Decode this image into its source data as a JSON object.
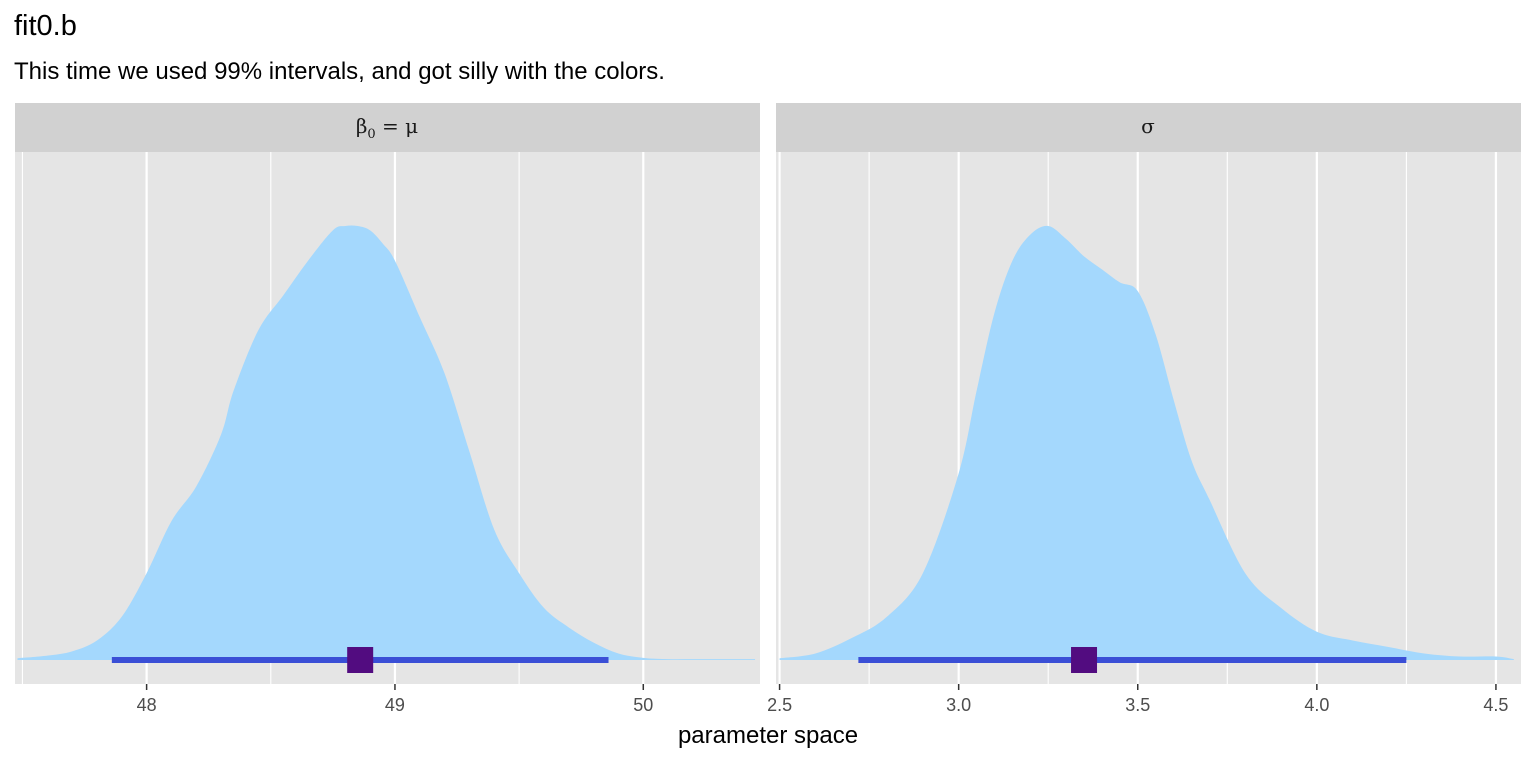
{
  "title": "fit0.b",
  "subtitle": "This time we used 99% intervals, and got silly with the colors.",
  "xlabel": "parameter space",
  "colors": {
    "panel_bg": "#e5e5e5",
    "strip_bg": "#d1d1d1",
    "grid": "#ffffff",
    "density_fill": "#a4d8fd",
    "interval": "#3a4fd6",
    "point": "#520c80"
  },
  "chart_data": [
    {
      "type": "area",
      "facet_label": "β0 = μ",
      "xlim": [
        47.47,
        50.47
      ],
      "ticks": [
        48,
        49,
        50
      ],
      "tick_labels": [
        "48",
        "49",
        "50"
      ],
      "density": {
        "x": [
          47.48,
          47.6,
          47.7,
          47.8,
          47.9,
          48.0,
          48.1,
          48.2,
          48.3,
          48.35,
          48.45,
          48.55,
          48.65,
          48.75,
          48.8,
          48.85,
          48.9,
          48.95,
          49.0,
          49.1,
          49.2,
          49.3,
          49.4,
          49.5,
          49.6,
          49.7,
          49.8,
          49.9,
          50.0,
          50.1,
          50.2,
          50.3,
          50.45
        ],
        "y": [
          0.004,
          0.01,
          0.02,
          0.045,
          0.1,
          0.2,
          0.32,
          0.4,
          0.52,
          0.62,
          0.76,
          0.84,
          0.92,
          0.99,
          1.0,
          1.0,
          0.99,
          0.96,
          0.92,
          0.79,
          0.66,
          0.48,
          0.3,
          0.2,
          0.12,
          0.075,
          0.04,
          0.015,
          0.005,
          0.002,
          0.002,
          0.002,
          0.002
        ]
      },
      "interval": [
        47.86,
        49.86
      ],
      "point": 48.86
    },
    {
      "type": "area",
      "facet_label": "σ",
      "xlim": [
        2.49,
        4.57
      ],
      "ticks": [
        2.5,
        3.0,
        3.5,
        4.0,
        4.5
      ],
      "tick_labels": [
        "2.5",
        "3.0",
        "3.5",
        "4.0",
        "4.5"
      ],
      "density": {
        "x": [
          2.5,
          2.6,
          2.7,
          2.8,
          2.9,
          3.0,
          3.05,
          3.1,
          3.15,
          3.2,
          3.25,
          3.3,
          3.35,
          3.4,
          3.45,
          3.5,
          3.55,
          3.6,
          3.65,
          3.7,
          3.8,
          3.9,
          4.0,
          4.1,
          4.2,
          4.3,
          4.4,
          4.5,
          4.55
        ],
        "y": [
          0.004,
          0.015,
          0.05,
          0.1,
          0.2,
          0.43,
          0.62,
          0.8,
          0.92,
          0.98,
          1.0,
          0.97,
          0.93,
          0.9,
          0.87,
          0.85,
          0.75,
          0.6,
          0.46,
          0.37,
          0.2,
          0.12,
          0.065,
          0.045,
          0.03,
          0.015,
          0.008,
          0.008,
          0.002
        ]
      },
      "interval": [
        2.72,
        4.25
      ],
      "point": 3.35
    }
  ]
}
